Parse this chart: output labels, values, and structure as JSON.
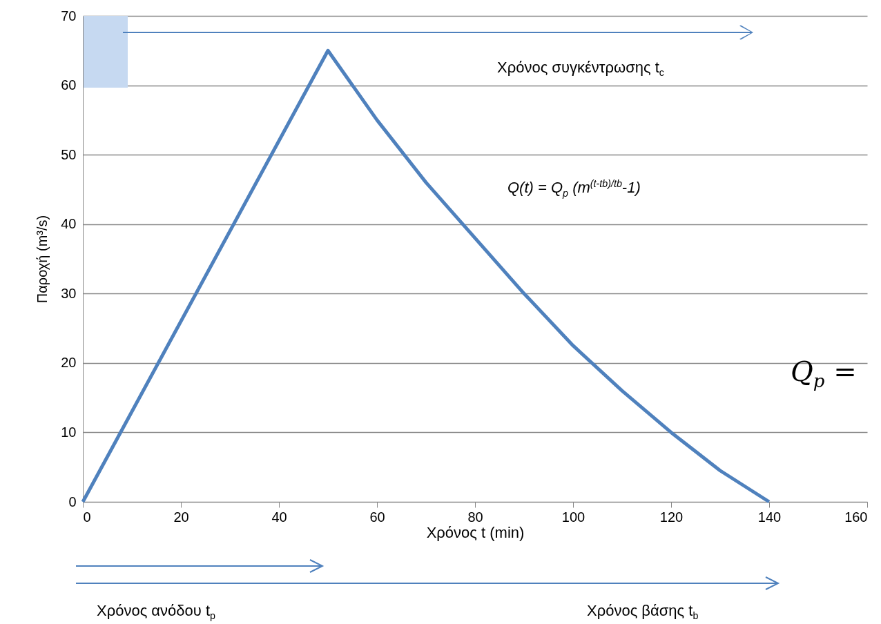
{
  "chart_data": {
    "type": "line",
    "xlabel": "Χρόνος t (min)",
    "ylabel": "Παροχή (m³/s)",
    "x": [
      0,
      50,
      60,
      70,
      80,
      90,
      100,
      110,
      120,
      130,
      140
    ],
    "series": [
      {
        "color": "#4f81bd",
        "values": [
          0,
          65,
          55,
          46,
          38,
          30,
          22.5,
          16,
          10,
          4.5,
          0
        ]
      }
    ],
    "xlim": [
      0,
      160
    ],
    "xticks": [
      0,
      20,
      40,
      60,
      80,
      100,
      120,
      140,
      160
    ],
    "ylim": [
      0,
      70
    ],
    "yticks": [
      0,
      10,
      20,
      30,
      40,
      50,
      60,
      70
    ],
    "grid": "y",
    "marker": "none",
    "line_style": "solid",
    "annotations": [
      "Χρόνος συγκέντρωσης t$_{c}$",
      "Q(t) = Q$_{p}$ (m$^{(t-tb)/tb}$-1)",
      "Q$_{p}$ =",
      "Χρόνος ανόδου t$_{p}$",
      "Χρόνος βάσης t$_{b}$"
    ]
  }
}
